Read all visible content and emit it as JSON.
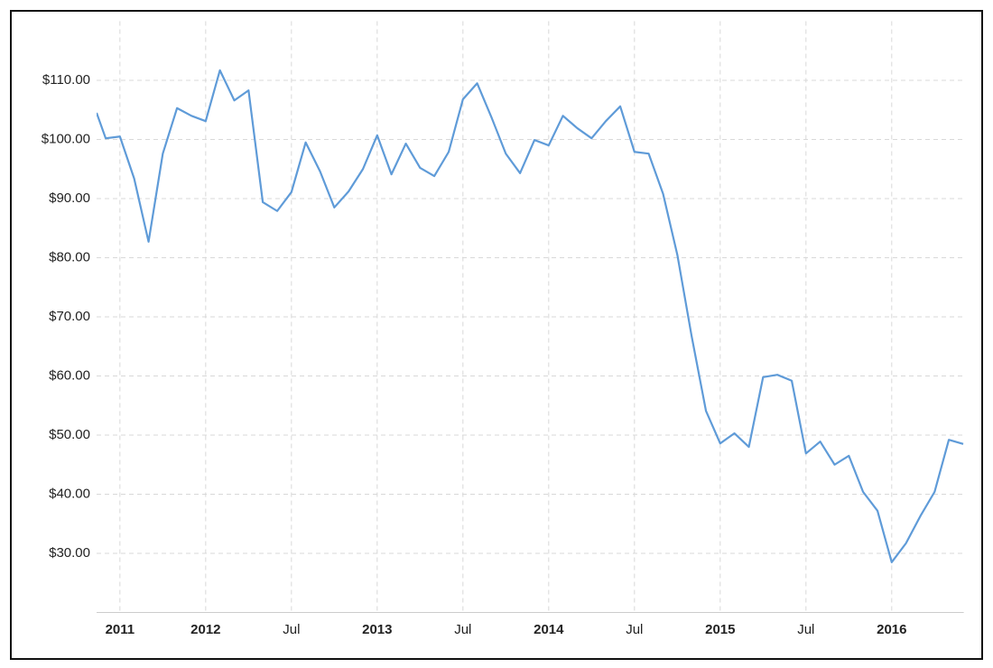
{
  "chart_data": {
    "type": "line",
    "x": [
      2011.364,
      2011.417,
      2011.5,
      2011.583,
      2011.667,
      2011.75,
      2011.833,
      2011.917,
      2012.0,
      2012.083,
      2012.167,
      2012.25,
      2012.333,
      2012.417,
      2012.5,
      2012.583,
      2012.667,
      2012.75,
      2012.833,
      2012.917,
      2013.0,
      2013.083,
      2013.167,
      2013.25,
      2013.333,
      2013.417,
      2013.5,
      2013.583,
      2013.667,
      2013.75,
      2013.833,
      2013.917,
      2014.0,
      2014.083,
      2014.167,
      2014.25,
      2014.333,
      2014.417,
      2014.5,
      2014.583,
      2014.667,
      2014.75,
      2014.833,
      2014.917,
      2015.0,
      2015.083,
      2015.167,
      2015.25,
      2015.333,
      2015.417,
      2015.5,
      2015.583,
      2015.667,
      2015.75,
      2015.833,
      2015.917,
      2016.0,
      2016.083,
      2016.167,
      2016.25,
      2016.333,
      2016.417
    ],
    "series": [
      {
        "color": "#5f9bd8",
        "values": [
          104.5,
          100.2,
          100.5,
          93.4,
          82.7,
          97.6,
          105.3,
          104.0,
          103.1,
          111.7,
          106.6,
          108.3,
          89.4,
          87.9,
          91.1,
          99.5,
          94.6,
          88.5,
          91.2,
          95.0,
          100.7,
          94.1,
          99.3,
          95.2,
          93.8,
          97.9,
          106.8,
          109.5,
          103.7,
          97.6,
          94.3,
          99.9,
          99.0,
          104.0,
          101.9,
          100.2,
          103.1,
          105.6,
          97.9,
          97.6,
          90.8,
          80.5,
          66.8,
          54.1,
          48.6,
          50.3,
          48.0,
          59.8,
          60.2,
          59.2,
          46.9,
          48.9,
          45.0,
          46.5,
          40.4,
          37.2,
          28.5,
          31.7,
          36.3,
          40.4,
          49.2,
          48.5
        ]
      }
    ],
    "xlim": [
      2011.364,
      2016.42
    ],
    "xticks": [
      {
        "value": 2011.5,
        "label": "2011"
      },
      2012,
      {
        "value": 2012.5,
        "label": "Jul"
      },
      2013,
      {
        "value": 2013.5,
        "label": "Jul"
      },
      2014,
      {
        "value": 2014.5,
        "label": "Jul"
      },
      2015,
      {
        "value": 2015.5,
        "label": "Jul"
      },
      2016
    ],
    "ylim": [
      20,
      120
    ],
    "yticks": [
      {
        "value": 30,
        "label": "$30.00"
      },
      {
        "value": 40,
        "label": "$40.00"
      },
      {
        "value": 50,
        "label": "$50.00"
      },
      {
        "value": 60,
        "label": "$60.00"
      },
      {
        "value": 70,
        "label": "$70.00"
      },
      {
        "value": 80,
        "label": "$80.00"
      },
      {
        "value": 90,
        "label": "$90.00"
      },
      {
        "value": 100,
        "label": "$100.00"
      },
      {
        "value": 110,
        "label": "$110.00"
      }
    ],
    "grid": true
  }
}
